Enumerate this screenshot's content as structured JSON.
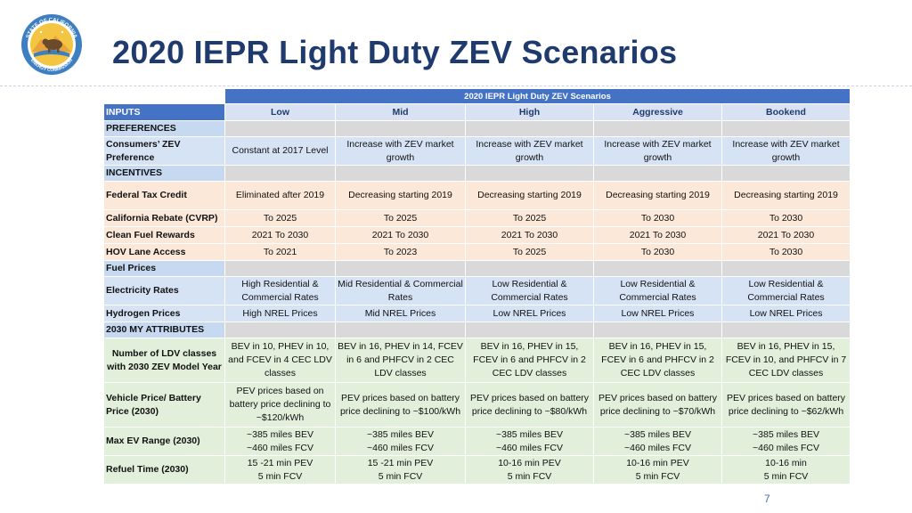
{
  "header": {
    "title": "2020 IEPR Light Duty ZEV Scenarios",
    "logo": {
      "top_text": "STATE OF CALIFORNIA",
      "bottom_text": "ENERGY COMMISSION"
    }
  },
  "table": {
    "banner": "2020 IEPR Light Duty ZEV Scenarios",
    "inputs_label": "INPUTS",
    "scenarios": [
      "Low",
      "Mid",
      "High",
      "Aggressive",
      "Bookend"
    ],
    "sections": [
      {
        "title": "PREFERENCES",
        "group": "pref",
        "rows": [
          {
            "label": "Consumers’ ZEV Preference",
            "cells": [
              "Constant at 2017 Level",
              "Increase with ZEV market growth",
              "Increase with ZEV market growth",
              "Increase with ZEV market growth",
              "Increase with ZEV market growth"
            ]
          }
        ]
      },
      {
        "title": "INCENTIVES",
        "group": "inc",
        "rows": [
          {
            "label": "Federal Tax Credit",
            "cells": [
              "Eliminated after 2019",
              "Decreasing starting 2019",
              "Decreasing starting 2019",
              "Decreasing starting 2019",
              "Decreasing starting 2019"
            ]
          },
          {
            "label": "California Rebate (CVRP)",
            "cells": [
              "To 2025",
              "To 2025",
              "To 2025",
              "To 2030",
              "To 2030"
            ]
          },
          {
            "label": "Clean Fuel Rewards",
            "cells": [
              "2021 To 2030",
              "2021 To 2030",
              "2021 To 2030",
              "2021 To 2030",
              "2021 To 2030"
            ]
          },
          {
            "label": "HOV Lane Access",
            "cells": [
              "To 2021",
              "To 2023",
              "To 2025",
              "To 2030",
              "To 2030"
            ]
          }
        ]
      },
      {
        "title": "Fuel Prices",
        "group": "fuel",
        "rows": [
          {
            "label": "Electricity Rates",
            "cells": [
              "High Residential & Commercial Rates",
              "Mid Residential & Commercial Rates",
              "Low Residential & Commercial Rates",
              "Low Residential & Commercial Rates",
              "Low Residential & Commercial Rates"
            ]
          },
          {
            "label": "Hydrogen Prices",
            "cells": [
              "High NREL Prices",
              "Mid NREL Prices",
              "Low NREL Prices",
              "Low NREL Prices",
              "Low NREL Prices"
            ]
          }
        ]
      },
      {
        "title": "2030  MY ATTRIBUTES",
        "group": "attr",
        "rows": [
          {
            "label": "Number of LDV classes with 2030 ZEV Model Year",
            "centered_label": true,
            "cells": [
              "BEV in 10, PHEV in 10, and FCEV in 4 CEC LDV classes",
              "BEV in 16, PHEV in 14, FCEV in 6 and PHFCV in 2 CEC LDV classes",
              "BEV in 16, PHEV in 15, FCEV in 6 and PHFCV in 2 CEC LDV classes",
              "BEV in 16, PHEV in 15, FCEV in 6 and PHFCV in 2 CEC LDV classes",
              "BEV in 16, PHEV in 15, FCEV in 10, and PHFCV in 7 CEC LDV classes"
            ]
          },
          {
            "label": "Vehicle Price/ Battery Price (2030)",
            "cells": [
              "PEV prices based on battery price declining to ~$120/kWh",
              "PEV prices based on battery price declining to ~$100/kWh",
              "PEV prices based on battery price declining to ~$80/kWh",
              "PEV prices based on battery price declining to ~$70/kWh",
              "PEV prices based on battery price declining to ~$62/kWh"
            ]
          },
          {
            "label": "Max EV Range (2030)",
            "cells": [
              "~385 miles BEV\n~460 miles FCV",
              "~385 miles BEV\n~460 miles FCV",
              "~385 miles BEV\n~460 miles FCV",
              "~385 miles BEV\n~460 miles FCV",
              "~385 miles BEV\n~460 miles FCV"
            ]
          },
          {
            "label": "Refuel Time (2030)",
            "cells": [
              "15 -21 min PEV\n5 min FCV",
              "15 -21 min PEV\n5 min FCV",
              "10-16 min PEV\n5 min FCV",
              "10-16 min PEV\n5 min FCV",
              "10-16 min\n5 min FCV"
            ]
          }
        ]
      }
    ]
  },
  "footer": {
    "page_number": "7"
  },
  "colors": {
    "title": "#1f3b6e",
    "banner": "#4472c4",
    "header_cells": "#d9e2f3",
    "preferences": "#d6e3f5",
    "incentives": "#fce8d8",
    "fuel_prices": "#d6e3f5",
    "attributes": "#e2efda"
  }
}
